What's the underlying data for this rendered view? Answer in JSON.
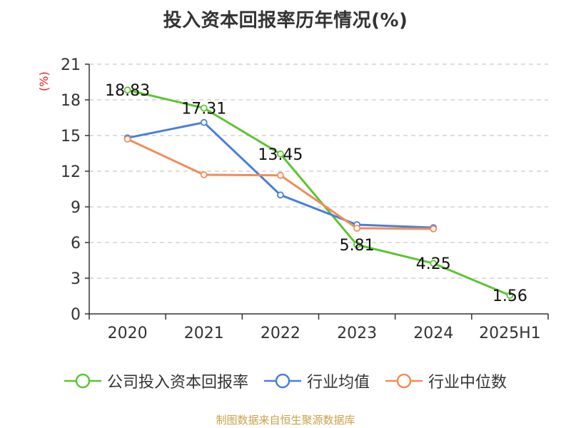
{
  "title": "投入资本回报率历年情况(%)",
  "unit_label": "(%)",
  "source": "制图数据来自恒生聚源数据库",
  "chart_data": {
    "type": "line",
    "title": "投入资本回报率历年情况(%)",
    "ylabel": "(%)",
    "xlabel": "",
    "categories": [
      "2020",
      "2021",
      "2022",
      "2023",
      "2024",
      "2025H1"
    ],
    "ylim": [
      0,
      21
    ],
    "yticks": [
      0,
      3,
      6,
      9,
      12,
      15,
      18,
      21
    ],
    "grid": true,
    "legend_position": "bottom",
    "series": [
      {
        "name": "公司投入资本回报率",
        "color": "#5cc531",
        "values": [
          18.83,
          17.31,
          13.45,
          5.81,
          4.25,
          1.56
        ],
        "labels": [
          "18.83",
          "17.31",
          "13.45",
          "5.81",
          "4.25",
          "1.56"
        ]
      },
      {
        "name": "行业均值",
        "color": "#4a7fd9",
        "values": [
          14.8,
          16.1,
          10.0,
          7.5,
          7.25,
          null
        ]
      },
      {
        "name": "行业中位数",
        "color": "#f28c5a",
        "values": [
          14.7,
          11.7,
          11.65,
          7.2,
          7.15,
          null
        ]
      }
    ]
  }
}
